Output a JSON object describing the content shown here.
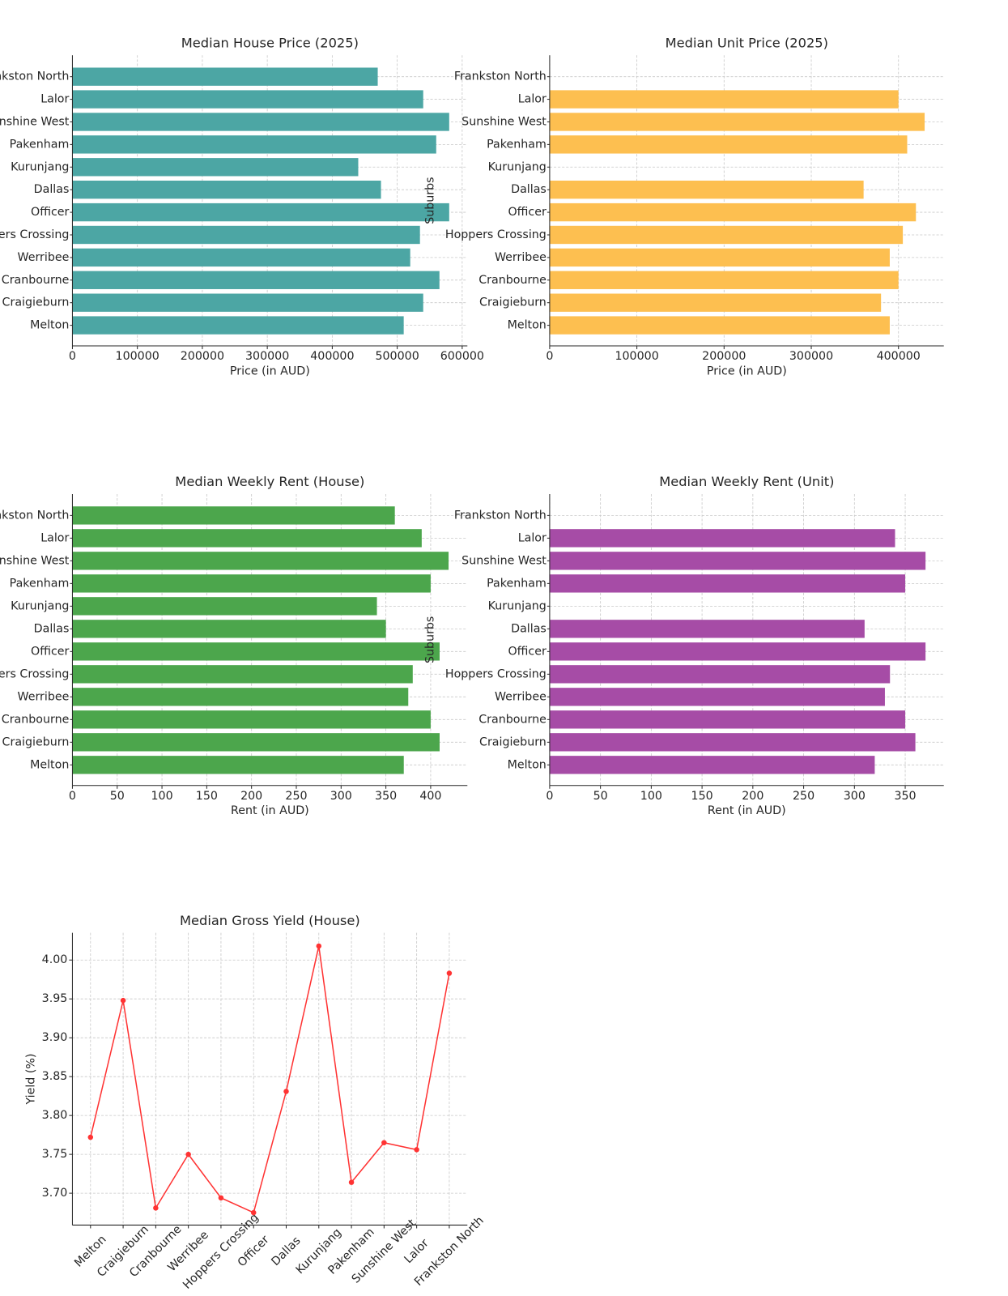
{
  "chart_data": [
    {
      "type": "barh",
      "title": "Median House Price (2025)",
      "x_label": "Price (in AUD)",
      "categories": [
        "Melton",
        "Craigieburn",
        "Cranbourne",
        "Werribee",
        "Hoppers Crossing",
        "Officer",
        "Dallas",
        "Kurunjang",
        "Pakenham",
        "Sunshine West",
        "Lalor",
        "Frankston North"
      ],
      "values": [
        510000,
        540000,
        565000,
        520000,
        535000,
        580000,
        475000,
        440000,
        560000,
        580000,
        540000,
        470000
      ],
      "color": "#4ca6a4",
      "xlim": [
        0,
        608000
      ],
      "xticks": [
        0,
        100000,
        200000,
        300000,
        400000,
        500000,
        600000
      ],
      "grid": true
    },
    {
      "type": "barh",
      "title": "Median Unit Price (2025)",
      "x_label": "Price (in AUD)",
      "y_label": "Suburbs",
      "categories": [
        "Melton",
        "Craigieburn",
        "Cranbourne",
        "Werribee",
        "Hoppers Crossing",
        "Officer",
        "Dallas",
        "Kurunjang",
        "Pakenham",
        "Sunshine West",
        "Lalor",
        "Frankston North"
      ],
      "values": [
        390000,
        380000,
        400000,
        390000,
        405000,
        420000,
        360000,
        null,
        410000,
        430000,
        400000,
        null
      ],
      "color": "#fdbf50",
      "xlim": [
        0,
        452000
      ],
      "xticks": [
        0,
        100000,
        200000,
        300000,
        400000
      ],
      "grid": true
    },
    {
      "type": "barh",
      "title": "Median Weekly Rent (House)",
      "x_label": "Rent (in AUD)",
      "categories": [
        "Melton",
        "Craigieburn",
        "Cranbourne",
        "Werribee",
        "Hoppers Crossing",
        "Officer",
        "Dallas",
        "Kurunjang",
        "Pakenham",
        "Sunshine West",
        "Lalor",
        "Frankston North"
      ],
      "values": [
        370,
        410,
        400,
        375,
        380,
        410,
        350,
        340,
        400,
        420,
        390,
        360
      ],
      "color": "#4ca64c",
      "xlim": [
        0,
        441
      ],
      "xticks": [
        0,
        50,
        100,
        150,
        200,
        250,
        300,
        350,
        400
      ],
      "grid": true
    },
    {
      "type": "barh",
      "title": "Median Weekly Rent (Unit)",
      "x_label": "Rent (in AUD)",
      "y_label": "Suburbs",
      "categories": [
        "Melton",
        "Craigieburn",
        "Cranbourne",
        "Werribee",
        "Hoppers Crossing",
        "Officer",
        "Dallas",
        "Kurunjang",
        "Pakenham",
        "Sunshine West",
        "Lalor",
        "Frankston North"
      ],
      "values": [
        320,
        360,
        350,
        330,
        335,
        370,
        310,
        null,
        350,
        370,
        340,
        null
      ],
      "color": "#a64ca6",
      "xlim": [
        0,
        388
      ],
      "xticks": [
        0,
        50,
        100,
        150,
        200,
        250,
        300,
        350
      ],
      "grid": true
    },
    {
      "type": "line",
      "title": "Median Gross Yield (House)",
      "y_label": "Yield (%)",
      "categories": [
        "Melton",
        "Craigieburn",
        "Cranbourne",
        "Werribee",
        "Hoppers Crossing",
        "Officer",
        "Dallas",
        "Kurunjang",
        "Pakenham",
        "Sunshine West",
        "Lalor",
        "Frankston North"
      ],
      "values": [
        3.772,
        3.948,
        3.681,
        3.75,
        3.694,
        3.675,
        3.831,
        4.018,
        3.714,
        3.765,
        3.756,
        3.983
      ],
      "color": "#ff3333",
      "ylim": [
        3.659,
        4.035
      ],
      "yticks": [
        {
          "value": 3.7,
          "label": "3.70"
        },
        {
          "value": 3.75,
          "label": "3.75"
        },
        {
          "value": 3.8,
          "label": "3.80"
        },
        {
          "value": 3.85,
          "label": "3.85"
        },
        {
          "value": 3.9,
          "label": "3.90"
        },
        {
          "value": 3.95,
          "label": "3.95"
        },
        {
          "value": 4,
          "label": "4.00"
        }
      ],
      "grid": true
    }
  ]
}
